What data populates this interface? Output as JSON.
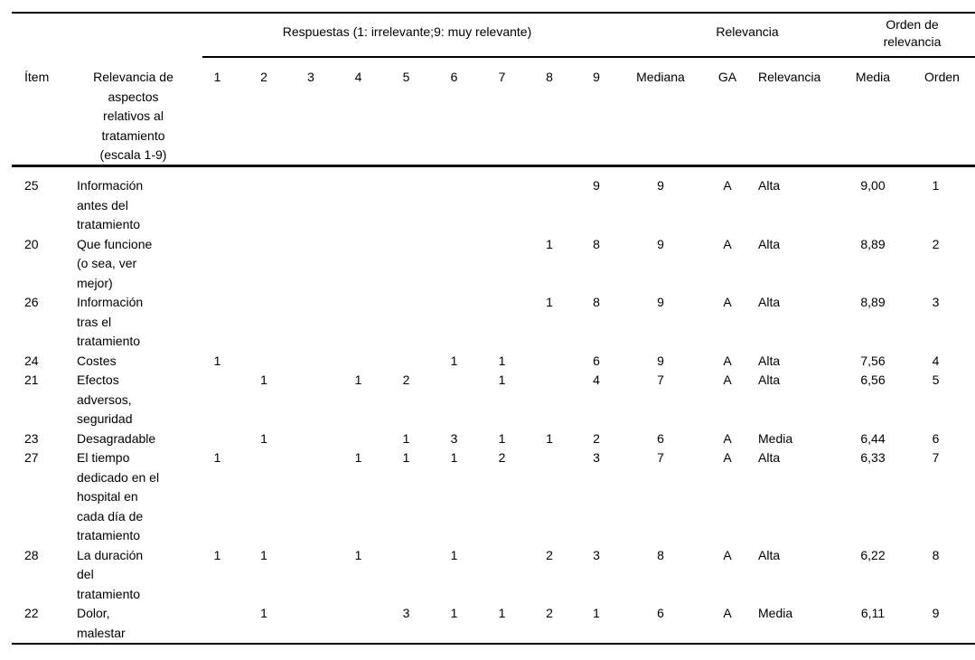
{
  "page": {
    "background": "#ffffff",
    "text_color": "#000000",
    "rule_color": "#000000"
  },
  "table": {
    "group_headers": {
      "respuestas": "Respuestas (1: irrelevante;9: muy relevante)",
      "relevancia": "Relevancia",
      "orden_de_relevancia": "Orden de\nrelevancia"
    },
    "column_headers": {
      "item": "Ítem",
      "descripcion": "Relevancia de\naspectos\nrelativos al\ntratamiento\n(escala 1-9)",
      "respuestas": [
        "1",
        "2",
        "3",
        "4",
        "5",
        "6",
        "7",
        "8",
        "9"
      ],
      "mediana": "Mediana",
      "ga": "GA",
      "relevancia": "Relevancia",
      "media": "Media",
      "orden": "Orden"
    },
    "rows": [
      {
        "item": "25",
        "label": "Información\nantes del\ntratamiento",
        "respuestas": [
          "",
          "",
          "",
          "",
          "",
          "",
          "",
          "",
          "9"
        ],
        "mediana": "9",
        "ga": "A",
        "relevancia": "Alta",
        "media": "9,00",
        "orden": "1"
      },
      {
        "item": "20",
        "label": "Que funcione\n(o sea, ver\nmejor)",
        "respuestas": [
          "",
          "",
          "",
          "",
          "",
          "",
          "",
          "1",
          "8"
        ],
        "mediana": "9",
        "ga": "A",
        "relevancia": "Alta",
        "media": "8,89",
        "orden": "2"
      },
      {
        "item": "26",
        "label": "Información\ntras el\ntratamiento",
        "respuestas": [
          "",
          "",
          "",
          "",
          "",
          "",
          "",
          "1",
          "8"
        ],
        "mediana": "9",
        "ga": "A",
        "relevancia": "Alta",
        "media": "8,89",
        "orden": "3"
      },
      {
        "item": "24",
        "label": "Costes",
        "respuestas": [
          "1",
          "",
          "",
          "",
          "",
          "1",
          "1",
          "",
          "6"
        ],
        "mediana": "9",
        "ga": "A",
        "relevancia": "Alta",
        "media": "7,56",
        "orden": "4"
      },
      {
        "item": "21",
        "label": "Efectos\nadversos,\nseguridad",
        "respuestas": [
          "",
          "1",
          "",
          "1",
          "2",
          "",
          "1",
          "",
          "4"
        ],
        "mediana": "7",
        "ga": "A",
        "relevancia": "Alta",
        "media": "6,56",
        "orden": "5"
      },
      {
        "item": "23",
        "label": "Desagradable",
        "respuestas": [
          "",
          "1",
          "",
          "",
          "1",
          "3",
          "1",
          "1",
          "2"
        ],
        "mediana": "6",
        "ga": "A",
        "relevancia": "Media",
        "media": "6,44",
        "orden": "6"
      },
      {
        "item": "27",
        "label": "El tiempo\ndedicado en el\nhospital en\ncada día de\ntratamiento",
        "respuestas": [
          "1",
          "",
          "",
          "1",
          "1",
          "1",
          "2",
          "",
          "3"
        ],
        "mediana": "7",
        "ga": "A",
        "relevancia": "Alta",
        "media": "6,33",
        "orden": "7"
      },
      {
        "item": "28",
        "label": "La duración\ndel\ntratamiento",
        "respuestas": [
          "1",
          "1",
          "",
          "1",
          "",
          "1",
          "",
          "2",
          "3"
        ],
        "mediana": "8",
        "ga": "A",
        "relevancia": "Alta",
        "media": "6,22",
        "orden": "8"
      },
      {
        "item": "22",
        "label": "Dolor,\nmalestar",
        "respuestas": [
          "",
          "1",
          "",
          "",
          "3",
          "1",
          "1",
          "2",
          "1"
        ],
        "mediana": "6",
        "ga": "A",
        "relevancia": "Media",
        "media": "6,11",
        "orden": "9"
      }
    ]
  }
}
